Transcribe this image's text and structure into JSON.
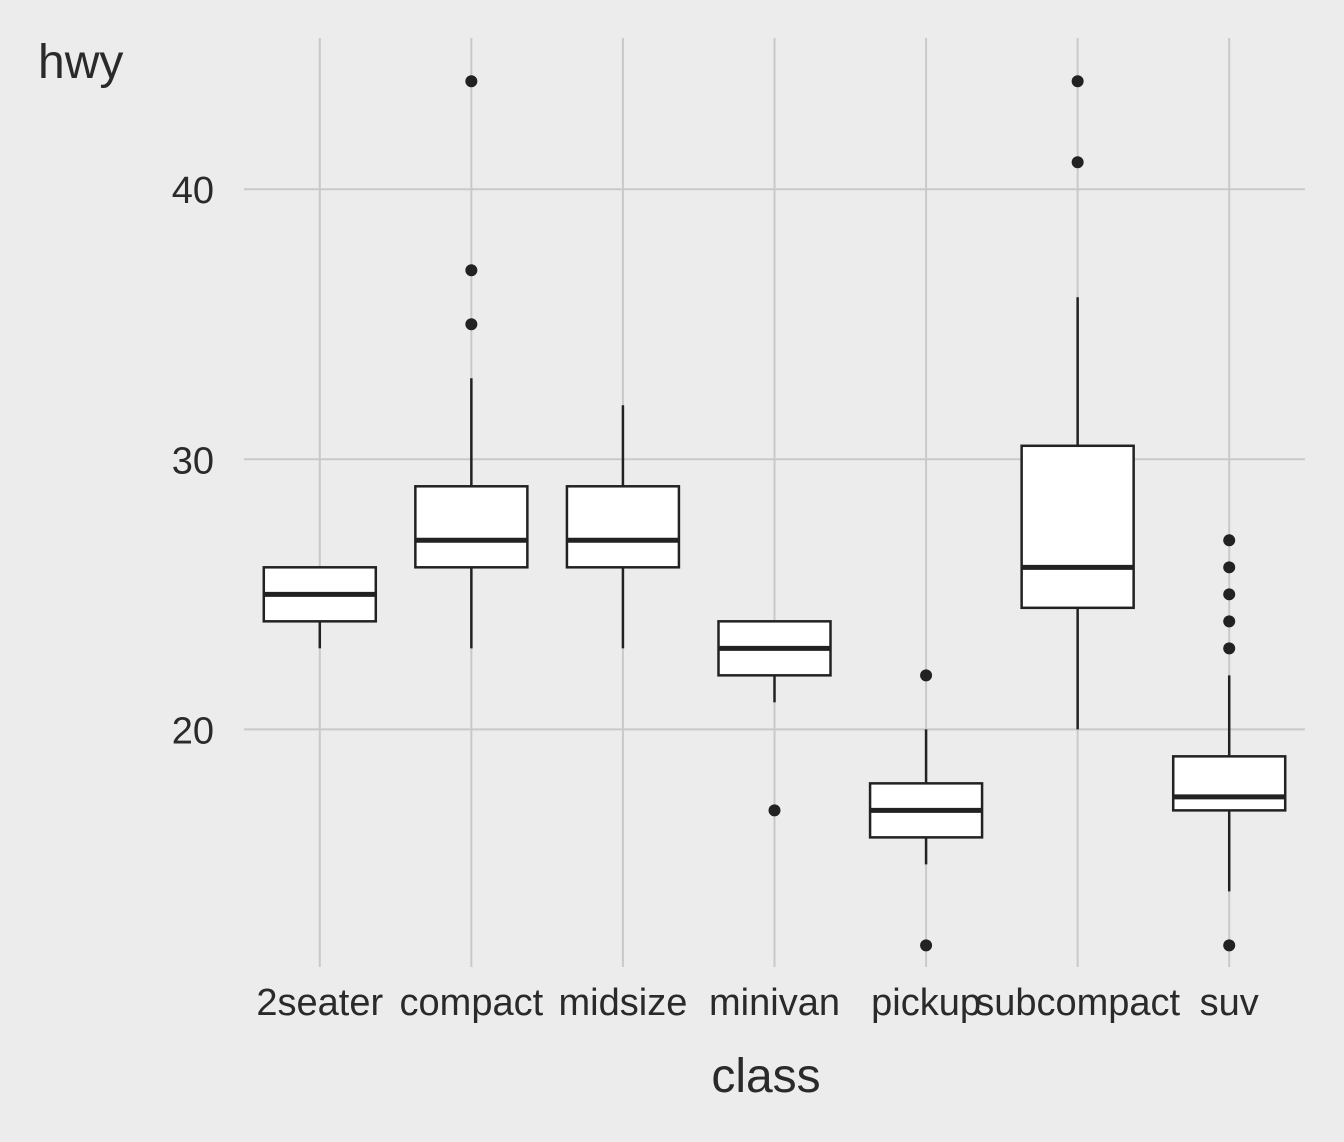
{
  "chart_data": {
    "type": "boxplot",
    "xlabel": "class",
    "ylabel": "hwy",
    "categories": [
      "2seater",
      "compact",
      "midsize",
      "minivan",
      "pickup",
      "subcompact",
      "suv"
    ],
    "boxes": [
      {
        "q1": 24,
        "median": 25,
        "q3": 26,
        "whisker_low": 23,
        "whisker_high": 26,
        "outliers": []
      },
      {
        "q1": 26,
        "median": 27,
        "q3": 29,
        "whisker_low": 23,
        "whisker_high": 33,
        "outliers": [
          35,
          37,
          44
        ]
      },
      {
        "q1": 26,
        "median": 27,
        "q3": 29,
        "whisker_low": 23,
        "whisker_high": 32,
        "outliers": []
      },
      {
        "q1": 22,
        "median": 23,
        "q3": 24,
        "whisker_low": 21,
        "whisker_high": 24,
        "outliers": [
          17
        ]
      },
      {
        "q1": 16,
        "median": 17,
        "q3": 18,
        "whisker_low": 15,
        "whisker_high": 20,
        "outliers": [
          22,
          12
        ]
      },
      {
        "q1": 24.5,
        "median": 26,
        "q3": 30.5,
        "whisker_low": 20,
        "whisker_high": 36,
        "outliers": [
          41,
          44
        ]
      },
      {
        "q1": 17,
        "median": 17.5,
        "q3": 19,
        "whisker_low": 14,
        "whisker_high": 22,
        "outliers": [
          23,
          24,
          25,
          26,
          27,
          12
        ]
      }
    ],
    "yticks": [
      20,
      30,
      40
    ],
    "ylim": [
      11.2,
      45.6
    ],
    "grid": true,
    "colors": {
      "background": "#ececec",
      "grid": "#c9c9c9",
      "box_fill": "#ffffff",
      "line": "#222222"
    }
  }
}
